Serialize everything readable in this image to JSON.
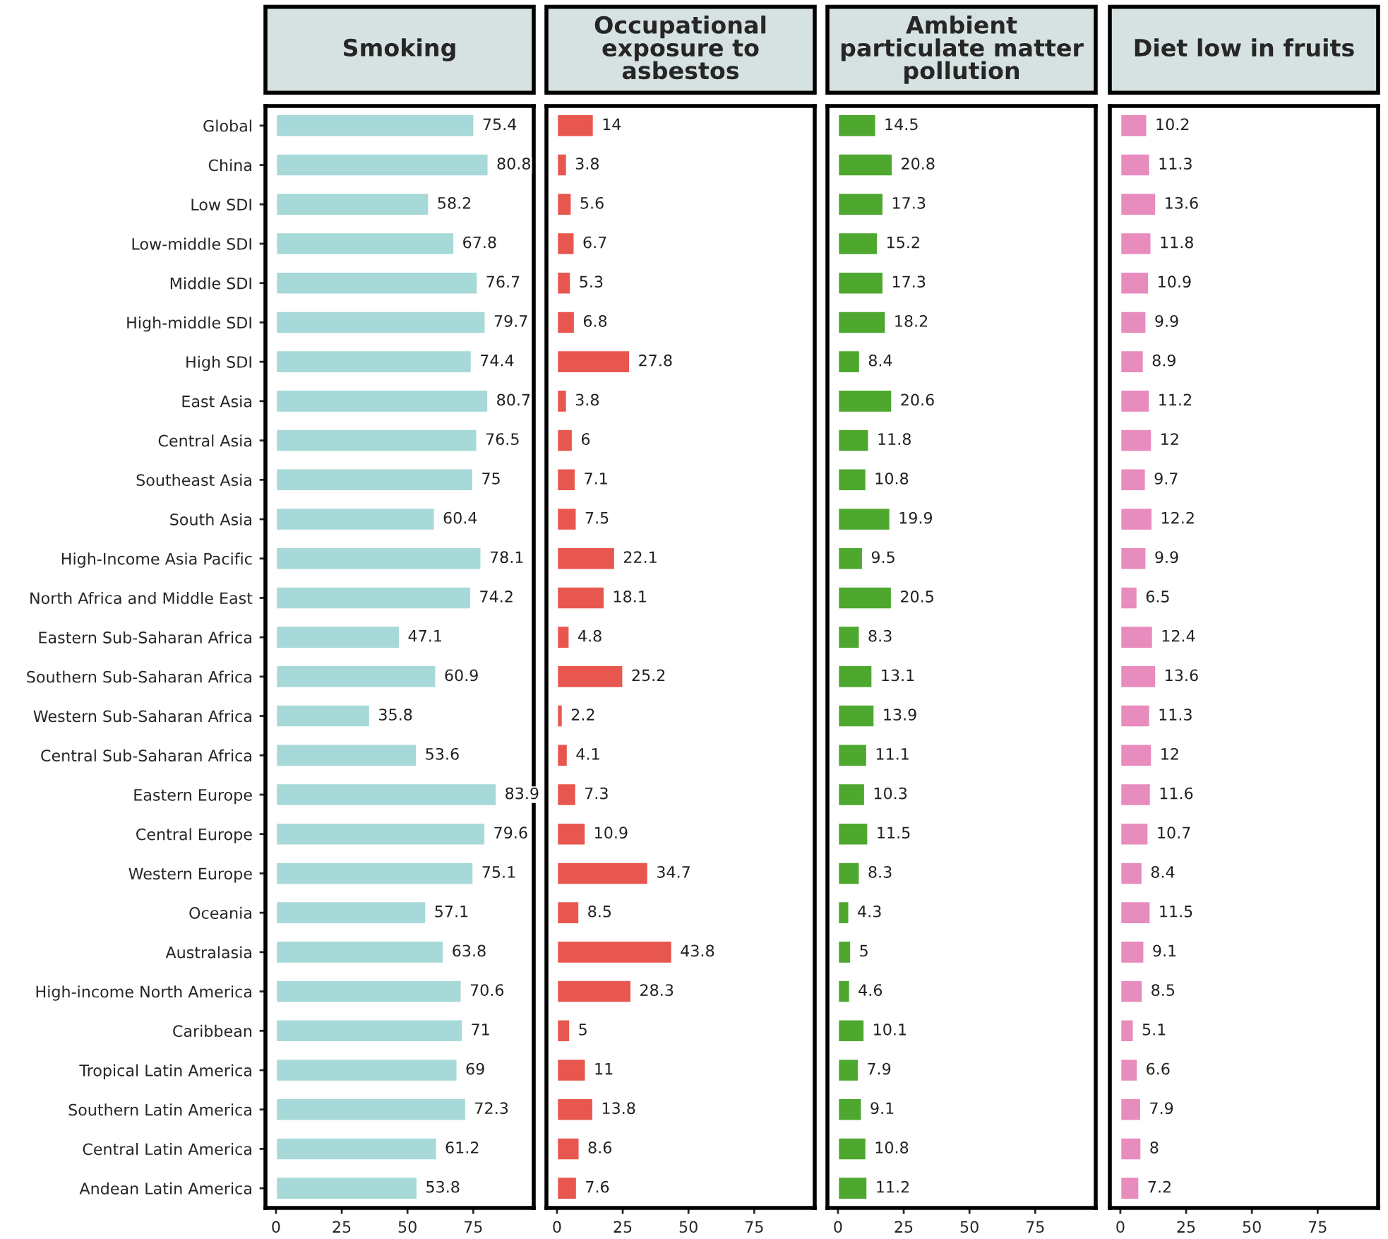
{
  "chart_data": [
    {
      "type": "bar",
      "orientation": "horizontal",
      "title": "Smoking",
      "categories": [
        "Global",
        "China",
        "Low SDI",
        "Low-middle SDI",
        "Middle SDI",
        "High-middle SDI",
        "High SDI",
        "East Asia",
        "Central Asia",
        "Southeast Asia",
        "South Asia",
        "High-Income Asia Pacific",
        "North Africa and Middle East",
        "Eastern Sub-Saharan Africa",
        "Southern Sub-Saharan Africa",
        "Western Sub-Saharan Africa",
        "Central Sub-Saharan Africa",
        "Eastern Europe",
        "Central Europe",
        "Western Europe",
        "Oceania",
        "Australasia",
        "High-income North America",
        "Caribbean",
        "Tropical Latin America",
        "Southern Latin America",
        "Central Latin America",
        "Andean Latin America"
      ],
      "values": [
        75.4,
        80.8,
        58.2,
        67.8,
        76.7,
        79.7,
        74.4,
        80.7,
        76.5,
        75,
        60.4,
        78.1,
        74.2,
        47.1,
        60.9,
        35.8,
        53.6,
        83.9,
        79.6,
        75.1,
        57.1,
        63.8,
        70.6,
        71,
        69,
        72.3,
        61.2,
        53.8
      ],
      "color": "#a6d9d7",
      "xlim": [
        -4,
        98
      ],
      "xticks": [
        0,
        25,
        50,
        75
      ],
      "data_labels": true,
      "grid": false
    },
    {
      "type": "bar",
      "orientation": "horizontal",
      "title": "Occupational exposure to asbestos",
      "categories": [
        null,
        null,
        null,
        null,
        null,
        null,
        null,
        null,
        null,
        null,
        null,
        null,
        null,
        null,
        null,
        null,
        null,
        null,
        null,
        null,
        null,
        null,
        null,
        null,
        null,
        null,
        null,
        null
      ],
      "values": [
        14,
        3.8,
        5.6,
        6.7,
        5.3,
        6.8,
        27.8,
        3.8,
        6,
        7.1,
        7.5,
        22.1,
        18.1,
        4.8,
        25.2,
        2.2,
        4.1,
        7.3,
        10.9,
        34.7,
        8.5,
        43.8,
        28.3,
        5,
        11,
        13.8,
        8.6,
        7.6
      ],
      "color": "#e8574f",
      "xlim": [
        -4,
        98
      ],
      "xticks": [
        0,
        25,
        50,
        75
      ],
      "data_labels": true,
      "grid": false,
      "tick_labels": "x"
    },
    {
      "type": "bar",
      "orientation": "horizontal",
      "title": "Ambient particulate matter pollution",
      "categories": [
        null,
        null,
        null,
        null,
        null,
        null,
        null,
        null,
        null,
        null,
        null,
        null,
        null,
        null,
        null,
        null,
        null,
        null,
        null,
        null,
        null,
        null,
        null,
        null,
        null,
        null,
        null,
        null
      ],
      "values": [
        14.5,
        20.8,
        17.3,
        15.2,
        17.3,
        18.2,
        8.4,
        20.6,
        11.8,
        10.8,
        19.9,
        9.5,
        20.5,
        8.3,
        13.1,
        13.9,
        11.1,
        10.3,
        11.5,
        8.3,
        4.3,
        5,
        4.6,
        10.1,
        7.9,
        9.1,
        10.8,
        11.2
      ],
      "color": "#4ea72e",
      "xlim": [
        -4,
        98
      ],
      "xticks": [
        0,
        25,
        50,
        75
      ],
      "data_labels": true,
      "grid": false,
      "tick_labels": "x"
    },
    {
      "type": "bar",
      "orientation": "horizontal",
      "title": "Diet low in fruits",
      "categories": [
        null,
        null,
        null,
        null,
        null,
        null,
        null,
        null,
        null,
        null,
        null,
        null,
        null,
        null,
        null,
        null,
        null,
        null,
        null,
        null,
        null,
        null,
        null,
        null,
        null,
        null,
        null,
        null
      ],
      "values": [
        10.2,
        11.3,
        13.6,
        11.8,
        10.9,
        9.9,
        8.9,
        11.2,
        12,
        9.7,
        12.2,
        9.9,
        6.5,
        12.4,
        13.6,
        11.3,
        12,
        11.6,
        10.7,
        8.4,
        11.5,
        9.1,
        8.5,
        5.1,
        6.6,
        7.9,
        8,
        7.2
      ],
      "color": "#e88bbd",
      "xlim": [
        -4,
        98
      ],
      "xticks": [
        0,
        25,
        50,
        75
      ],
      "data_labels": true,
      "grid": false,
      "tick_labels": "x"
    }
  ]
}
